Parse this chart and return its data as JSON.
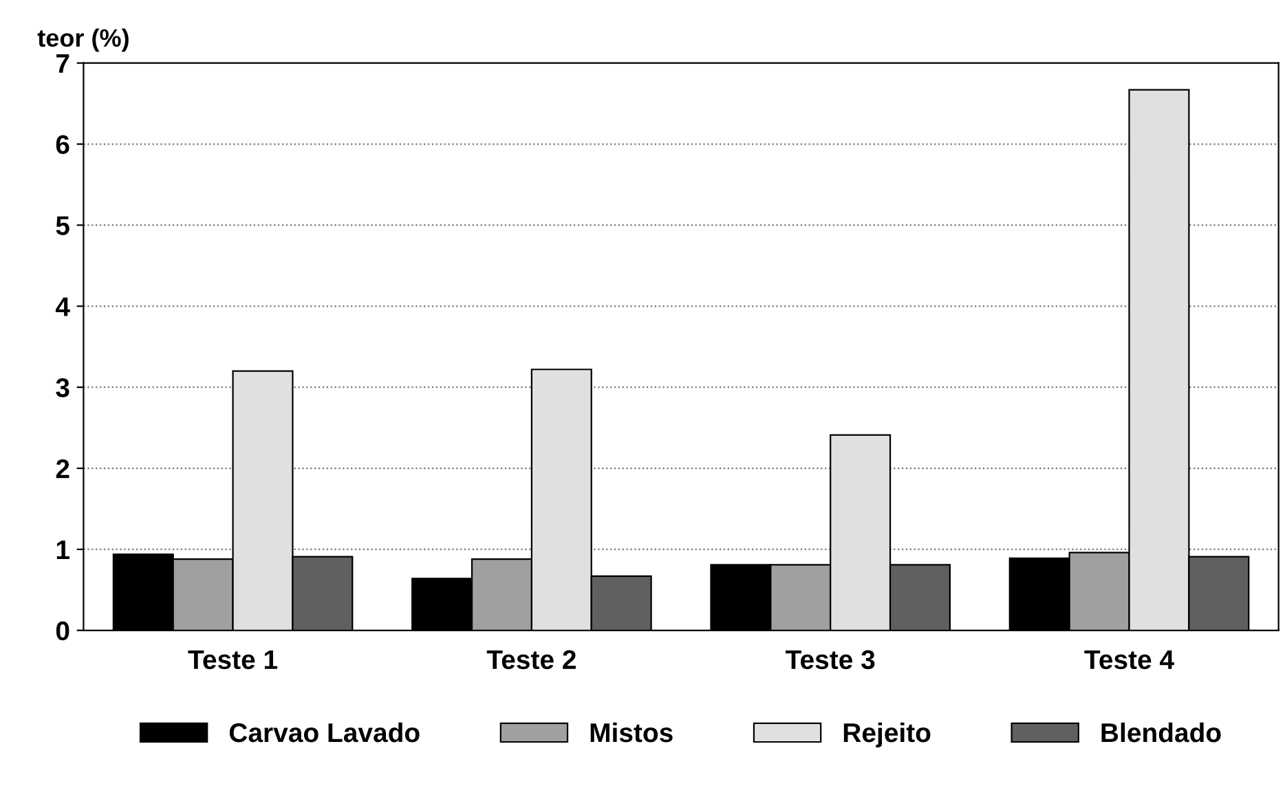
{
  "chart_data": {
    "type": "bar",
    "ylabel": "teor (%)",
    "categories": [
      "Teste 1",
      "Teste 2",
      "Teste 3",
      "Teste 4"
    ],
    "series": [
      {
        "name": "Carvao Lavado",
        "color": "#000000",
        "values": [
          0.94,
          0.64,
          0.81,
          0.89
        ]
      },
      {
        "name": "Mistos",
        "color": "#a0a0a0",
        "values": [
          0.88,
          0.88,
          0.81,
          0.96
        ]
      },
      {
        "name": "Rejeito",
        "color": "#e0e0e0",
        "values": [
          3.2,
          3.22,
          2.41,
          6.67
        ]
      },
      {
        "name": "Blendado",
        "color": "#606060",
        "values": [
          0.91,
          0.67,
          0.81,
          0.91
        ]
      }
    ],
    "ylim": [
      0,
      7
    ],
    "yticks": [
      0,
      1,
      2,
      3,
      4,
      5,
      6,
      7
    ],
    "grid": "y",
    "legend": "bottom"
  }
}
